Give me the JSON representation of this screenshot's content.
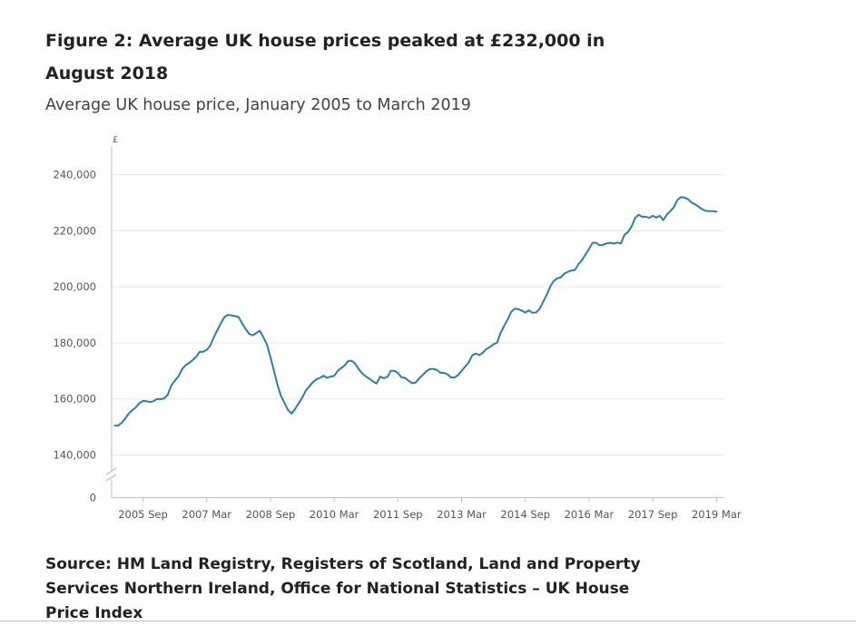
{
  "figure": {
    "title": "Figure 2: Average UK house prices peaked at £232,000 in August 2018",
    "subtitle": "Average UK house price, January 2005 to March 2019",
    "source": "Source: HM Land Registry, Registers of Scotland, Land and Property Services Northern Ireland, Office for National Statistics – UK House Price Index"
  },
  "colors": {
    "line": "#2a7fa6",
    "grid": "#e6e6e6",
    "axis": "#bdbdbd",
    "text": "#555555"
  },
  "chart_data": {
    "type": "line",
    "title": "Figure 2: Average UK house prices peaked at £232,000 in August 2018",
    "subtitle": "Average UK house price, January 2005 to March 2019",
    "y_unit_label": "£",
    "xlabel": "",
    "ylabel": "£",
    "ylim": [
      140000,
      240000
    ],
    "y_axis_break": true,
    "y_ticks": [
      0,
      140000,
      160000,
      180000,
      200000,
      220000,
      240000
    ],
    "y_tick_labels": [
      "0",
      "140,000",
      "160,000",
      "180,000",
      "200,000",
      "220,000",
      "240,000"
    ],
    "x_ticks": [
      "2005-09",
      "2007-03",
      "2008-09",
      "2010-03",
      "2011-09",
      "2013-03",
      "2014-09",
      "2016-03",
      "2017-09",
      "2019-03"
    ],
    "x_tick_labels": [
      "2005 Sep",
      "2007 Mar",
      "2008 Sep",
      "2010 Mar",
      "2011 Sep",
      "2013 Mar",
      "2014 Sep",
      "2016 Mar",
      "2017 Sep",
      "2019 Mar"
    ],
    "grid": true,
    "legend": "none",
    "series": [
      {
        "x": [
          "2005-01",
          "2005-02",
          "2005-03",
          "2005-04",
          "2005-05",
          "2005-06",
          "2005-07",
          "2005-08",
          "2005-09",
          "2005-10",
          "2005-11",
          "2005-12",
          "2006-01",
          "2006-02",
          "2006-03",
          "2006-04",
          "2006-05",
          "2006-06",
          "2006-07",
          "2006-08",
          "2006-09",
          "2006-10",
          "2006-11",
          "2006-12",
          "2007-01",
          "2007-02",
          "2007-03",
          "2007-04",
          "2007-05",
          "2007-06",
          "2007-07",
          "2007-08",
          "2007-09",
          "2007-10",
          "2007-11",
          "2007-12",
          "2008-01",
          "2008-02",
          "2008-03",
          "2008-04",
          "2008-05",
          "2008-06",
          "2008-07",
          "2008-08",
          "2008-09",
          "2008-10",
          "2008-11",
          "2008-12",
          "2009-01",
          "2009-02",
          "2009-03",
          "2009-04",
          "2009-05",
          "2009-06",
          "2009-07",
          "2009-08",
          "2009-09",
          "2009-10",
          "2009-11",
          "2009-12",
          "2010-01",
          "2010-02",
          "2010-03",
          "2010-04",
          "2010-05",
          "2010-06",
          "2010-07",
          "2010-08",
          "2010-09",
          "2010-10",
          "2010-11",
          "2010-12",
          "2011-01",
          "2011-02",
          "2011-03",
          "2011-04",
          "2011-05",
          "2011-06",
          "2011-07",
          "2011-08",
          "2011-09",
          "2011-10",
          "2011-11",
          "2011-12",
          "2012-01",
          "2012-02",
          "2012-03",
          "2012-04",
          "2012-05",
          "2012-06",
          "2012-07",
          "2012-08",
          "2012-09",
          "2012-10",
          "2012-11",
          "2012-12",
          "2013-01",
          "2013-02",
          "2013-03",
          "2013-04",
          "2013-05",
          "2013-06",
          "2013-07",
          "2013-08",
          "2013-09",
          "2013-10",
          "2013-11",
          "2013-12",
          "2014-01",
          "2014-02",
          "2014-03",
          "2014-04",
          "2014-05",
          "2014-06",
          "2014-07",
          "2014-08",
          "2014-09",
          "2014-10",
          "2014-11",
          "2014-12",
          "2015-01",
          "2015-02",
          "2015-03",
          "2015-04",
          "2015-05",
          "2015-06",
          "2015-07",
          "2015-08",
          "2015-09",
          "2015-10",
          "2015-11",
          "2015-12",
          "2016-01",
          "2016-02",
          "2016-03",
          "2016-04",
          "2016-05",
          "2016-06",
          "2016-07",
          "2016-08",
          "2016-09",
          "2016-10",
          "2016-11",
          "2016-12",
          "2017-01",
          "2017-02",
          "2017-03",
          "2017-04",
          "2017-05",
          "2017-06",
          "2017-07",
          "2017-08",
          "2017-09",
          "2017-10",
          "2017-11",
          "2017-12",
          "2018-01",
          "2018-02",
          "2018-03",
          "2018-04",
          "2018-05",
          "2018-06",
          "2018-07",
          "2018-08",
          "2018-09",
          "2018-10",
          "2018-11",
          "2018-12",
          "2019-01",
          "2019-02",
          "2019-03"
        ],
        "values": [
          150500,
          150500,
          151500,
          153000,
          154800,
          156000,
          157000,
          158500,
          159300,
          159200,
          158900,
          159200,
          160000,
          159900,
          160200,
          161500,
          164800,
          166500,
          168000,
          170500,
          172000,
          172800,
          173800,
          175000,
          176800,
          176800,
          177500,
          179000,
          182000,
          184500,
          187000,
          189200,
          190000,
          189800,
          189500,
          189200,
          187000,
          185000,
          183200,
          182700,
          183500,
          184300,
          182000,
          179500,
          175000,
          170000,
          165000,
          161000,
          158500,
          156000,
          154800,
          156500,
          158500,
          160500,
          163000,
          164500,
          166000,
          167000,
          167500,
          168300,
          167500,
          168000,
          168200,
          170000,
          171000,
          172000,
          173600,
          173600,
          172500,
          170500,
          169000,
          168000,
          167200,
          166200,
          165500,
          168000,
          167400,
          167800,
          170000,
          170000,
          169300,
          167700,
          167500,
          166500,
          165600,
          165800,
          167300,
          168500,
          169800,
          170600,
          170700,
          170400,
          169300,
          169300,
          168800,
          167700,
          167600,
          168500,
          170000,
          171500,
          173000,
          175500,
          176200,
          175600,
          176500,
          177800,
          178500,
          179500,
          180000,
          183500,
          186000,
          188300,
          191000,
          192200,
          192000,
          191500,
          190800,
          191600,
          190700,
          190800,
          192000,
          194500,
          197000,
          200000,
          202000,
          203000,
          203300,
          204700,
          205300,
          205800,
          206000,
          208000,
          209500,
          211500,
          213500,
          215700,
          215700,
          214800,
          215000,
          215500,
          215700,
          215400,
          215800,
          215400,
          218500,
          219500,
          221500,
          224500,
          225700,
          225000,
          225000,
          224600,
          225300,
          224700,
          225300,
          223800,
          225800,
          227000,
          228500,
          231000,
          232000,
          231800,
          231200,
          230000,
          229400,
          228500,
          227600,
          227100,
          227000,
          227000,
          226800
        ]
      }
    ]
  }
}
